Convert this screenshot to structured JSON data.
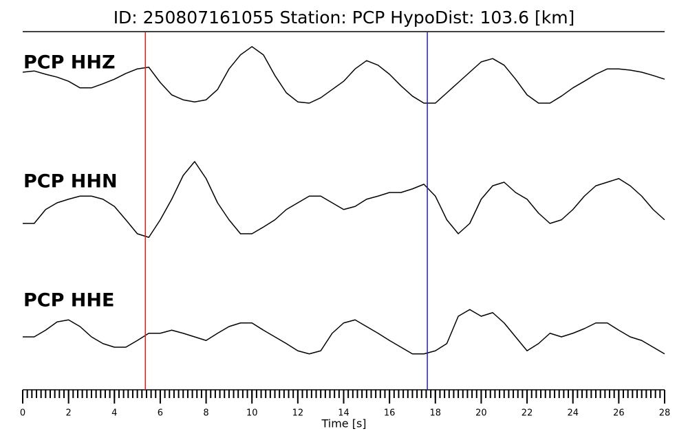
{
  "chart_data": {
    "type": "line",
    "title": "ID: 250807161055   Station: PCP   HypoDist:   103.6 [km]",
    "xlabel": "Time [s]",
    "xlim": [
      0,
      28
    ],
    "xticks": [
      0,
      2,
      4,
      6,
      8,
      10,
      12,
      14,
      16,
      18,
      20,
      22,
      24,
      26,
      28
    ],
    "xminor_step": 0.2,
    "ylim": [
      -1,
      1
    ],
    "markers": [
      {
        "x": 5.35,
        "color": "#e41a1c"
      },
      {
        "x": 17.65,
        "color": "#1f1fb4"
      }
    ],
    "x": [
      0,
      0.5,
      1,
      1.5,
      2,
      2.5,
      3,
      3.5,
      4,
      4.5,
      5,
      5.5,
      6,
      6.5,
      7,
      7.5,
      8,
      8.5,
      9,
      9.5,
      10,
      10.5,
      11,
      11.5,
      12,
      12.5,
      13,
      13.5,
      14,
      14.5,
      15,
      15.5,
      16,
      16.5,
      17,
      17.5,
      18,
      18.5,
      19,
      19.5,
      20,
      20.5,
      21,
      21.5,
      22,
      22.5,
      23,
      23.5,
      24,
      24.5,
      25,
      25.5,
      26,
      26.5,
      27,
      27.5,
      28
    ],
    "series": [
      {
        "name": "PCP HHZ",
        "color": "#000000",
        "label_color": "#4e9a06",
        "values": [
          0.25,
          0.28,
          0.2,
          0.13,
          0.03,
          -0.13,
          -0.13,
          -0.03,
          0.08,
          0.22,
          0.33,
          0.37,
          0,
          -0.3,
          -0.42,
          -0.47,
          -0.42,
          -0.17,
          0.33,
          0.67,
          0.87,
          0.67,
          0.17,
          -0.25,
          -0.47,
          -0.5,
          -0.37,
          -0.17,
          0.03,
          0.33,
          0.53,
          0.42,
          0.2,
          -0.08,
          -0.33,
          -0.5,
          -0.5,
          -0.25,
          0,
          0.25,
          0.5,
          0.58,
          0.42,
          0.08,
          -0.3,
          -0.5,
          -0.5,
          -0.33,
          -0.13,
          0.03,
          0.2,
          0.33,
          0.33,
          0.3,
          0.25,
          0.17,
          0.08
        ]
      },
      {
        "name": "PCP HHN",
        "color": "#000000",
        "label_color": "#4e9a06",
        "values": [
          -0.4,
          -0.4,
          -0.13,
          0,
          0.07,
          0.13,
          0.13,
          0.07,
          -0.07,
          -0.33,
          -0.6,
          -0.67,
          -0.33,
          0.07,
          0.53,
          0.8,
          0.47,
          0,
          -0.33,
          -0.6,
          -0.6,
          -0.47,
          -0.33,
          -0.13,
          0,
          0.13,
          0.13,
          0,
          -0.13,
          -0.07,
          0.07,
          0.13,
          0.2,
          0.2,
          0.27,
          0.36,
          0.13,
          -0.33,
          -0.6,
          -0.4,
          0.07,
          0.33,
          0.4,
          0.2,
          0.07,
          -0.2,
          -0.4,
          -0.33,
          -0.13,
          0.13,
          0.33,
          0.4,
          0.47,
          0.33,
          0.13,
          -0.13,
          -0.33
        ]
      },
      {
        "name": "PCP HHE",
        "color": "#000000",
        "label_color": "#4e9a06",
        "values": [
          0,
          0,
          0.13,
          0.29,
          0.33,
          0.2,
          0,
          -0.13,
          -0.2,
          -0.2,
          -0.07,
          0.07,
          0.07,
          0.13,
          0.07,
          0,
          -0.07,
          0.07,
          0.2,
          0.27,
          0.27,
          0.13,
          0,
          -0.13,
          -0.27,
          -0.33,
          -0.27,
          0.07,
          0.27,
          0.33,
          0.2,
          0.07,
          -0.07,
          -0.2,
          -0.33,
          -0.33,
          -0.27,
          -0.13,
          0.4,
          0.53,
          0.4,
          0.47,
          0.27,
          0,
          -0.27,
          -0.13,
          0.07,
          0,
          0.07,
          0.16,
          0.27,
          0.27,
          0.13,
          0,
          -0.07,
          -0.2,
          -0.33
        ]
      }
    ]
  }
}
